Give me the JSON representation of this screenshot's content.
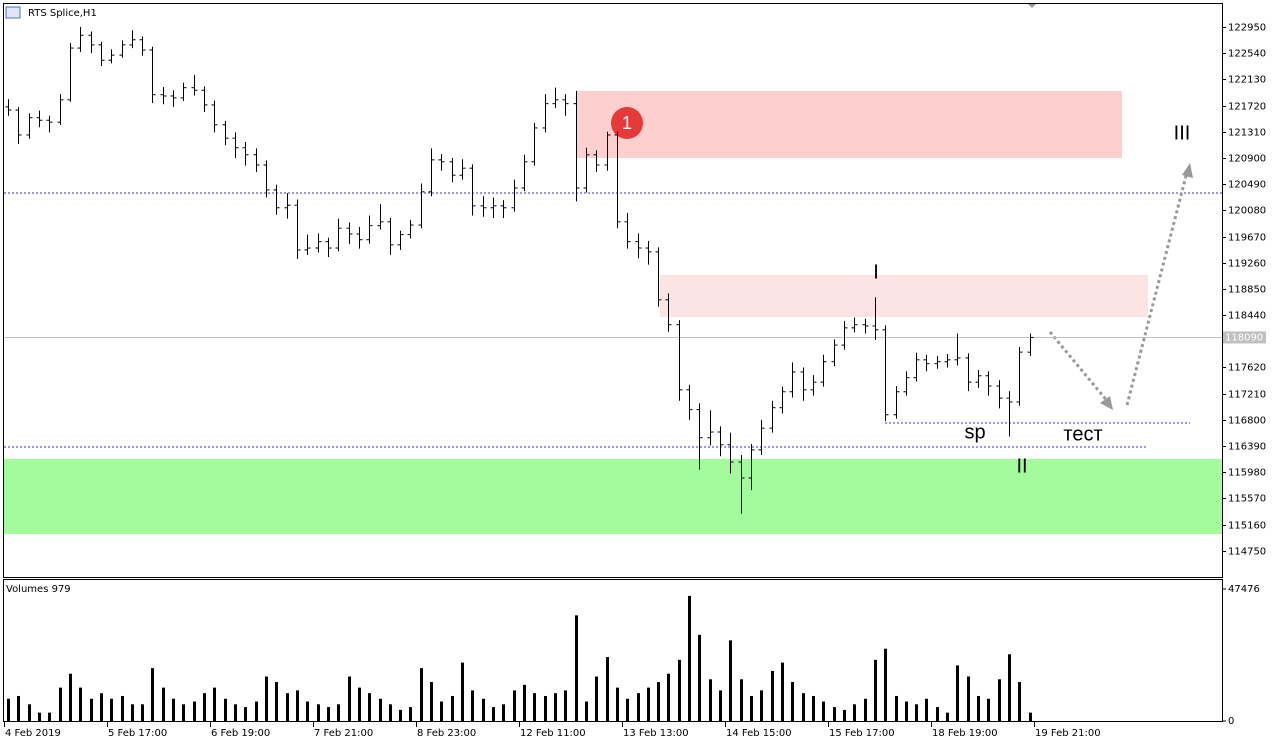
{
  "chart_data": {
    "type": "ohlc",
    "title": "RTS Splice,H1",
    "volume_title": "Volumes 979",
    "last_price": 118090,
    "ylim": [
      114340,
      123310
    ],
    "yticks": [
      122950,
      122540,
      122130,
      121720,
      121310,
      120900,
      120490,
      120080,
      119670,
      119260,
      118850,
      118440,
      117620,
      117210,
      116800,
      116390,
      115980,
      115570,
      115160,
      114750
    ],
    "vlim": [
      0,
      47476
    ],
    "vticks": [
      47476,
      0
    ],
    "xlabels": [
      "4 Feb 2019",
      "5 Feb 17:00",
      "6 Feb 19:00",
      "7 Feb 21:00",
      "8 Feb 23:00",
      "12 Feb 11:00",
      "13 Feb 13:00",
      "14 Feb 15:00",
      "15 Feb 17:00",
      "18 Feb 19:00",
      "19 Feb 21:00"
    ],
    "annotations": [
      "1",
      "I",
      "II",
      "III",
      "sp",
      "тест"
    ],
    "bar_color": "#000000",
    "open": [
      121700,
      121650,
      121260,
      121530,
      121490,
      121460,
      121810,
      122620,
      122820,
      122670,
      122430,
      122510,
      122670,
      122750,
      122590,
      121890,
      121870,
      121840,
      122000,
      121960,
      121730,
      121420,
      121210,
      121060,
      120950,
      120790,
      120400,
      120120,
      120160,
      119460,
      119490,
      119590,
      119490,
      119800,
      119710,
      119620,
      119840,
      119900,
      119540,
      119700,
      119850,
      120370,
      120870,
      120840,
      120630,
      120740,
      120150,
      120120,
      120150,
      120120,
      120430,
      120840,
      121370,
      121750,
      121810,
      121750,
      120430,
      120950,
      120790,
      121260,
      119900,
      119590,
      119490,
      119430,
      118680,
      118290,
      117270,
      116960,
      116520,
      116610,
      116410,
      116140,
      115890,
      116330,
      116670,
      116990,
      117240,
      117550,
      117270,
      117390,
      117710,
      117970,
      118240,
      118290,
      118270,
      118210,
      116880,
      117240,
      117460,
      117740,
      117680,
      117710,
      117740,
      117770,
      117390,
      117490,
      117330,
      117140,
      117080,
      117860
    ],
    "high": [
      121820,
      121700,
      121600,
      121640,
      121560,
      121900,
      122700,
      122950,
      122880,
      122720,
      122600,
      122740,
      122900,
      122800,
      122640,
      122010,
      121960,
      122080,
      122200,
      122020,
      121800,
      121480,
      121300,
      121150,
      121050,
      120860,
      120480,
      120350,
      120250,
      119700,
      119720,
      119650,
      119950,
      119890,
      119820,
      120000,
      120180,
      119960,
      119760,
      119930,
      120500,
      121050,
      120960,
      120900,
      120880,
      120800,
      120300,
      120280,
      120240,
      120560,
      120950,
      121450,
      121900,
      122000,
      121900,
      121950,
      121060,
      121020,
      121310,
      121310,
      120040,
      119720,
      119600,
      119500,
      118780,
      118360,
      117350,
      117060,
      116950,
      116700,
      116600,
      116250,
      116420,
      116800,
      117100,
      117320,
      117700,
      117620,
      117500,
      117820,
      118060,
      118350,
      118400,
      118380,
      118720,
      118280,
      117330,
      117560,
      117850,
      117820,
      117800,
      117830,
      118150,
      117840,
      117580,
      117560,
      117420,
      117250,
      117940,
      118150
    ],
    "low": [
      121560,
      121120,
      121200,
      121380,
      121300,
      121420,
      121780,
      122560,
      122540,
      122340,
      122380,
      122470,
      122620,
      122500,
      121760,
      121740,
      121700,
      121790,
      121880,
      121620,
      121300,
      121100,
      120900,
      120780,
      120680,
      120280,
      120010,
      119950,
      119320,
      119380,
      119420,
      119350,
      119440,
      119550,
      119480,
      119560,
      119780,
      119380,
      119460,
      119640,
      119800,
      120300,
      120700,
      120520,
      120560,
      120000,
      119980,
      119960,
      119960,
      120060,
      120380,
      120780,
      121300,
      121680,
      121560,
      120220,
      120360,
      120680,
      120700,
      119800,
      119480,
      119330,
      119230,
      118570,
      118180,
      117100,
      116800,
      116020,
      116400,
      116230,
      115960,
      115330,
      115700,
      116250,
      116600,
      116900,
      117150,
      117100,
      117180,
      117320,
      117640,
      117900,
      118170,
      118150,
      118050,
      116780,
      116820,
      117180,
      117400,
      117560,
      117600,
      117620,
      117650,
      117250,
      117300,
      117180,
      116980,
      116540,
      117020,
      117800
    ],
    "close": [
      121650,
      121260,
      121530,
      121490,
      121460,
      121810,
      122620,
      122820,
      122670,
      122430,
      122510,
      122670,
      122750,
      122590,
      121890,
      121870,
      121840,
      122000,
      121960,
      121730,
      121420,
      121210,
      121060,
      120950,
      120790,
      120400,
      120120,
      120160,
      119460,
      119490,
      119590,
      119490,
      119800,
      119710,
      119620,
      119840,
      119900,
      119540,
      119700,
      119850,
      120370,
      120870,
      120840,
      120630,
      120740,
      120150,
      120120,
      120150,
      120120,
      120430,
      120840,
      121370,
      121750,
      121810,
      121750,
      120430,
      120950,
      120790,
      121260,
      119900,
      119590,
      119490,
      119430,
      118680,
      118290,
      117270,
      116960,
      116520,
      116610,
      116410,
      116140,
      115890,
      116330,
      116670,
      116990,
      117240,
      117550,
      117270,
      117390,
      117710,
      117970,
      118240,
      118290,
      118270,
      118210,
      116880,
      117240,
      117460,
      117740,
      117680,
      117710,
      117740,
      117770,
      117390,
      117490,
      117330,
      117140,
      117080,
      117860,
      118090
    ],
    "volume": [
      8000,
      9000,
      6000,
      3000,
      3000,
      12000,
      17000,
      12000,
      8000,
      10000,
      8000,
      9000,
      6000,
      6000,
      19000,
      12000,
      8000,
      6000,
      7000,
      10000,
      12000,
      8000,
      6000,
      5000,
      7000,
      16000,
      14000,
      10000,
      11000,
      7000,
      6000,
      5000,
      6000,
      16000,
      12000,
      10000,
      8000,
      6000,
      4000,
      5000,
      19000,
      14000,
      7000,
      9000,
      21000,
      11000,
      8000,
      5000,
      6000,
      11000,
      13000,
      10000,
      9000,
      10000,
      11000,
      38000,
      7000,
      16000,
      23000,
      12000,
      8000,
      10000,
      12000,
      14000,
      17000,
      22000,
      45000,
      31000,
      15000,
      11000,
      29000,
      15000,
      9000,
      11000,
      18000,
      21000,
      14000,
      10000,
      9000,
      7000,
      5000,
      4000,
      6000,
      8000,
      22000,
      26000,
      9000,
      7000,
      6000,
      8000,
      5000,
      3000,
      20000,
      16000,
      9000,
      8000,
      15000,
      24000,
      14000,
      3000
    ]
  }
}
